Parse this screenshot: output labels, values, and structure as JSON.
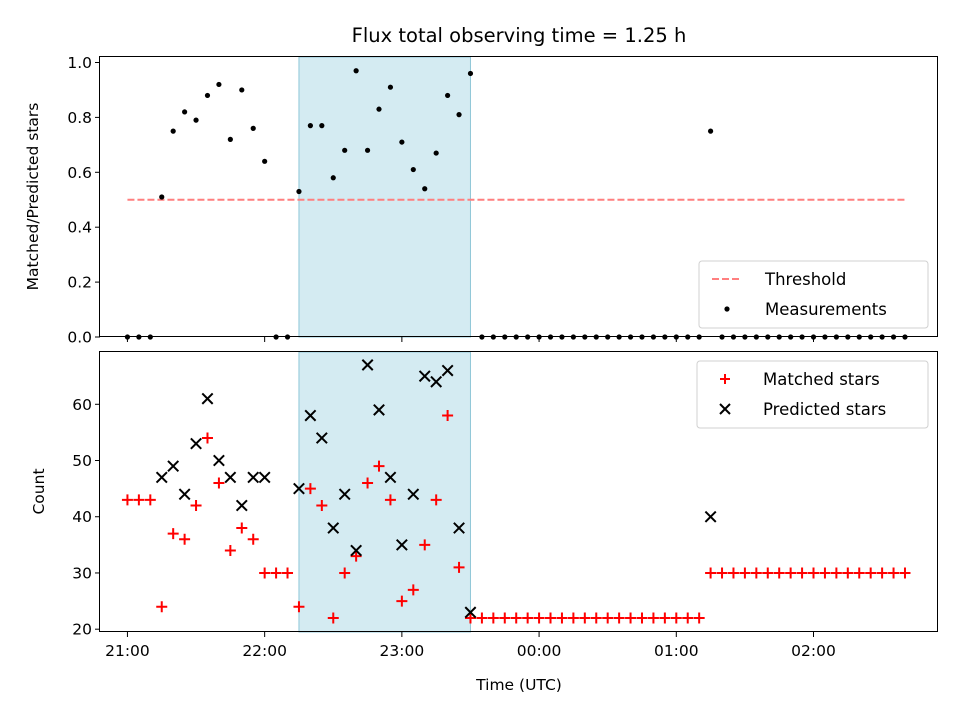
{
  "chart_data": {
    "type": "scatter",
    "title": "Flux total observing time = 1.25 h",
    "xlabel": "Time (UTC)",
    "x_tick_labels": [
      "21:00",
      "22:00",
      "23:00",
      "00:00",
      "01:00",
      "02:00"
    ],
    "x_range": [
      "20:48",
      "02:54"
    ],
    "highlight_span": {
      "from": "22:15",
      "to": "23:30",
      "color": "#add8e6"
    },
    "panels": [
      {
        "name": "ratio",
        "ylabel": "Matched/Predicted stars",
        "ylim": [
          0,
          1.02
        ],
        "yticks": [
          "0.0",
          "0.2",
          "0.4",
          "0.6",
          "0.8",
          "1.0"
        ],
        "legend_position": "lower-right",
        "series": [
          {
            "name": "Threshold",
            "kind": "dashed-line",
            "color": "#ff7f7f",
            "x": [
              "21:00",
              "02:40"
            ],
            "y": [
              0.5,
              0.5
            ]
          },
          {
            "name": "Measurements",
            "kind": "dot",
            "color": "#000000",
            "x": [
              "21:00",
              "21:05",
              "21:10",
              "21:15",
              "21:20",
              "21:25",
              "21:30",
              "21:35",
              "21:40",
              "21:45",
              "21:50",
              "21:55",
              "22:00",
              "22:05",
              "22:10",
              "22:15",
              "22:20",
              "22:25",
              "22:30",
              "22:35",
              "22:40",
              "22:45",
              "22:50",
              "22:55",
              "23:00",
              "23:05",
              "23:10",
              "23:15",
              "23:20",
              "23:25",
              "23:30",
              "23:35",
              "23:40",
              "23:45",
              "23:50",
              "23:55",
              "00:00",
              "00:05",
              "00:10",
              "00:15",
              "00:20",
              "00:25",
              "00:30",
              "00:35",
              "00:40",
              "00:45",
              "00:50",
              "00:55",
              "01:00",
              "01:05",
              "01:10",
              "01:15",
              "01:20",
              "01:25",
              "01:30",
              "01:35",
              "01:40",
              "01:45",
              "01:50",
              "01:55",
              "02:00",
              "02:05",
              "02:10",
              "02:15",
              "02:20",
              "02:25",
              "02:30",
              "02:35",
              "02:40"
            ],
            "y": [
              0,
              0,
              0,
              0.51,
              0.75,
              0.82,
              0.79,
              0.88,
              0.92,
              0.72,
              0.9,
              0.76,
              0.64,
              0,
              0,
              0.53,
              0.77,
              0.77,
              0.58,
              0.68,
              0.97,
              0.68,
              0.83,
              0.91,
              0.71,
              0.61,
              0.54,
              0.67,
              0.88,
              0.81,
              0.96,
              0,
              0,
              0,
              0,
              0,
              0,
              0,
              0,
              0,
              0,
              0,
              0,
              0,
              0,
              0,
              0,
              0,
              0,
              0,
              0,
              0.75,
              0,
              0,
              0,
              0,
              0,
              0,
              0,
              0,
              0,
              0,
              0,
              0,
              0,
              0,
              0,
              0,
              0
            ]
          }
        ]
      },
      {
        "name": "counts",
        "ylabel": "Count",
        "ylim": [
          19.5,
          69.3
        ],
        "yticks": [
          "20",
          "30",
          "40",
          "50",
          "60"
        ],
        "legend_position": "upper-right",
        "series": [
          {
            "name": "Matched stars",
            "kind": "plus",
            "color": "#ff0000",
            "x": [
              "21:00",
              "21:05",
              "21:10",
              "21:15",
              "21:20",
              "21:25",
              "21:30",
              "21:35",
              "21:40",
              "21:45",
              "21:50",
              "21:55",
              "22:00",
              "22:05",
              "22:10",
              "22:15",
              "22:20",
              "22:25",
              "22:30",
              "22:35",
              "22:40",
              "22:45",
              "22:50",
              "22:55",
              "23:00",
              "23:05",
              "23:10",
              "23:15",
              "23:20",
              "23:25",
              "23:30",
              "23:35",
              "23:40",
              "23:45",
              "23:50",
              "23:55",
              "00:00",
              "00:05",
              "00:10",
              "00:15",
              "00:20",
              "00:25",
              "00:30",
              "00:35",
              "00:40",
              "00:45",
              "00:50",
              "00:55",
              "01:00",
              "01:05",
              "01:10",
              "01:15",
              "01:20",
              "01:25",
              "01:30",
              "01:35",
              "01:40",
              "01:45",
              "01:50",
              "01:55",
              "02:00",
              "02:05",
              "02:10",
              "02:15",
              "02:20",
              "02:25",
              "02:30",
              "02:35",
              "02:40"
            ],
            "y": [
              43,
              43,
              43,
              24,
              37,
              36,
              42,
              54,
              46,
              34,
              38,
              36,
              30,
              30,
              30,
              24,
              45,
              42,
              22,
              30,
              33,
              46,
              49,
              43,
              25,
              27,
              35,
              43,
              58,
              31,
              22,
              22,
              22,
              22,
              22,
              22,
              22,
              22,
              22,
              22,
              22,
              22,
              22,
              22,
              22,
              22,
              22,
              22,
              22,
              22,
              22,
              30,
              30,
              30,
              30,
              30,
              30,
              30,
              30,
              30,
              30,
              30,
              30,
              30,
              30,
              30,
              30,
              30,
              30
            ]
          },
          {
            "name": "Predicted stars",
            "kind": "cross",
            "color": "#000000",
            "x": [
              "21:15",
              "21:20",
              "21:25",
              "21:30",
              "21:35",
              "21:40",
              "21:45",
              "21:50",
              "21:55",
              "22:00",
              "22:15",
              "22:20",
              "22:25",
              "22:30",
              "22:35",
              "22:40",
              "22:45",
              "22:50",
              "22:55",
              "23:00",
              "23:05",
              "23:10",
              "23:15",
              "23:20",
              "23:25",
              "23:30",
              "01:15"
            ],
            "y": [
              47,
              49,
              44,
              53,
              61,
              50,
              47,
              42,
              47,
              47,
              45,
              58,
              54,
              38,
              44,
              34,
              67,
              59,
              47,
              35,
              44,
              65,
              64,
              66,
              38,
              23,
              40
            ]
          }
        ]
      }
    ]
  }
}
